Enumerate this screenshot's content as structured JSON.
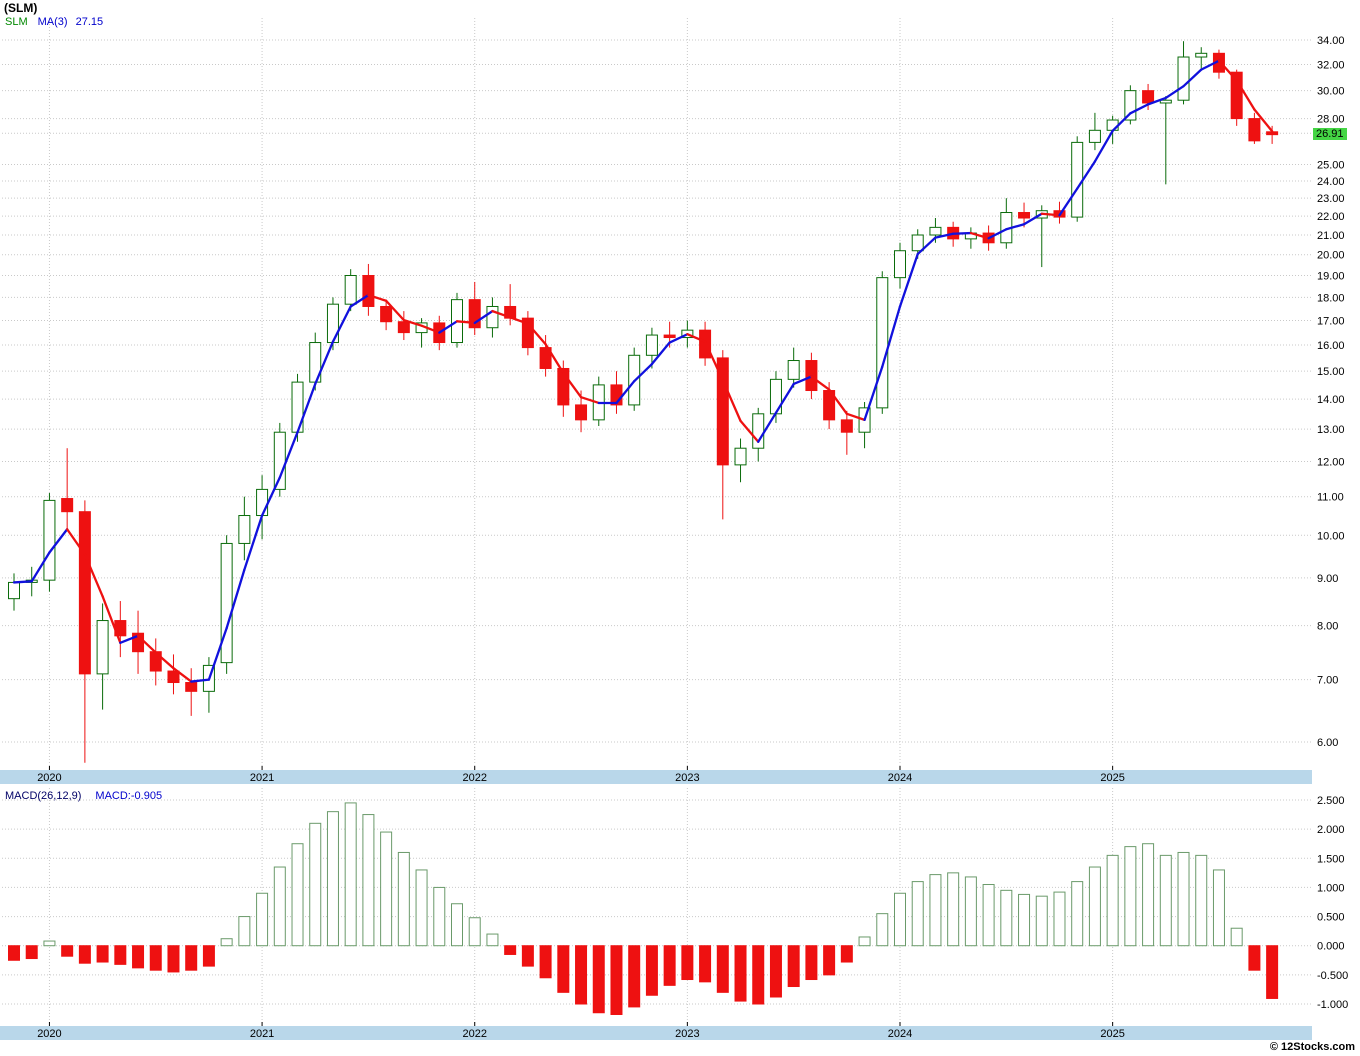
{
  "meta": {
    "title": "(SLM)",
    "copyright": "© 12Stocks.com"
  },
  "chart_data": [
    {
      "type": "candlestick",
      "name": "SLM monthly price with moving average",
      "legend": {
        "symbol": "SLM",
        "ma_label": "MA(3)",
        "ma_value": "27.15"
      },
      "current_price": 26.91,
      "current_price_label": "26.91",
      "scale": "log",
      "ylim": [
        5.6,
        36
      ],
      "y_ticks": [
        34,
        32,
        30,
        28,
        27,
        25,
        24,
        23,
        22,
        21,
        20,
        19,
        18,
        17,
        16,
        15,
        14,
        13,
        12,
        11,
        10,
        9,
        8,
        7,
        6
      ],
      "start_month": "2019-11",
      "years": [
        {
          "label": "2020",
          "index": 2
        },
        {
          "label": "2021",
          "index": 14
        },
        {
          "label": "2022",
          "index": 26
        },
        {
          "label": "2023",
          "index": 38
        },
        {
          "label": "2024",
          "index": 50
        },
        {
          "label": "2025",
          "index": 62
        }
      ],
      "ma_period": 3,
      "ohlc": [
        [
          8.55,
          9.1,
          8.3,
          8.9
        ],
        [
          8.9,
          9.25,
          8.6,
          8.95
        ],
        [
          8.95,
          11.1,
          8.7,
          10.9
        ],
        [
          10.95,
          12.4,
          10.1,
          10.6
        ],
        [
          10.6,
          10.9,
          5.7,
          7.1
        ],
        [
          7.1,
          8.45,
          6.5,
          8.1
        ],
        [
          8.1,
          8.5,
          7.4,
          7.8
        ],
        [
          7.85,
          8.3,
          7.1,
          7.5
        ],
        [
          7.5,
          7.75,
          6.9,
          7.15
        ],
        [
          7.15,
          7.45,
          6.75,
          6.95
        ],
        [
          6.95,
          7.2,
          6.4,
          6.8
        ],
        [
          6.8,
          7.4,
          6.45,
          7.25
        ],
        [
          7.3,
          10.0,
          7.1,
          9.8
        ],
        [
          9.8,
          11.0,
          9.4,
          10.5
        ],
        [
          10.5,
          11.6,
          9.9,
          11.2
        ],
        [
          11.2,
          13.2,
          11.0,
          12.9
        ],
        [
          12.9,
          14.9,
          12.6,
          14.6
        ],
        [
          14.6,
          16.5,
          14.3,
          16.1
        ],
        [
          16.1,
          18.0,
          15.8,
          17.7
        ],
        [
          17.7,
          19.3,
          17.4,
          19.0
        ],
        [
          19.0,
          19.55,
          17.2,
          17.6
        ],
        [
          17.6,
          17.9,
          16.6,
          16.95
        ],
        [
          16.95,
          17.4,
          16.2,
          16.5
        ],
        [
          16.5,
          17.1,
          15.9,
          16.9
        ],
        [
          16.9,
          17.2,
          15.8,
          16.1
        ],
        [
          16.1,
          18.2,
          15.9,
          17.9
        ],
        [
          17.9,
          18.7,
          16.4,
          16.7
        ],
        [
          16.7,
          18.0,
          16.3,
          17.6
        ],
        [
          17.6,
          18.6,
          16.8,
          17.1
        ],
        [
          17.1,
          17.4,
          15.6,
          15.9
        ],
        [
          15.9,
          16.4,
          14.8,
          15.1
        ],
        [
          15.1,
          15.4,
          13.4,
          13.8
        ],
        [
          13.8,
          14.3,
          12.9,
          13.3
        ],
        [
          13.3,
          14.8,
          13.1,
          14.5
        ],
        [
          14.5,
          15.0,
          13.5,
          13.8
        ],
        [
          13.8,
          15.9,
          13.6,
          15.6
        ],
        [
          15.6,
          16.7,
          15.1,
          16.4
        ],
        [
          16.4,
          16.95,
          15.9,
          16.3
        ],
        [
          16.3,
          17.0,
          15.9,
          16.6
        ],
        [
          16.6,
          16.95,
          15.2,
          15.5
        ],
        [
          15.5,
          15.8,
          10.4,
          11.9
        ],
        [
          11.9,
          12.7,
          11.4,
          12.4
        ],
        [
          12.4,
          13.7,
          12.0,
          13.5
        ],
        [
          13.5,
          15.0,
          13.2,
          14.7
        ],
        [
          14.7,
          15.9,
          14.4,
          15.4
        ],
        [
          15.4,
          15.7,
          14.0,
          14.3
        ],
        [
          14.3,
          14.6,
          13.0,
          13.3
        ],
        [
          13.3,
          13.6,
          12.2,
          12.9
        ],
        [
          12.9,
          13.9,
          12.4,
          13.7
        ],
        [
          13.7,
          19.2,
          13.5,
          18.9
        ],
        [
          18.9,
          20.6,
          18.4,
          20.2
        ],
        [
          20.2,
          21.3,
          19.8,
          21.0
        ],
        [
          21.0,
          21.9,
          20.6,
          21.4
        ],
        [
          21.4,
          21.7,
          20.4,
          20.8
        ],
        [
          20.8,
          21.4,
          20.3,
          21.1
        ],
        [
          21.1,
          21.5,
          20.2,
          20.6
        ],
        [
          20.6,
          23.0,
          20.3,
          22.2
        ],
        [
          22.2,
          22.75,
          21.4,
          21.9
        ],
        [
          21.9,
          22.6,
          19.4,
          22.3
        ],
        [
          22.3,
          22.8,
          21.6,
          21.95
        ],
        [
          21.95,
          26.8,
          21.7,
          26.4
        ],
        [
          26.4,
          28.4,
          25.9,
          27.2
        ],
        [
          27.2,
          28.2,
          26.3,
          27.9
        ],
        [
          27.9,
          30.4,
          27.6,
          30.0
        ],
        [
          30.0,
          30.5,
          28.6,
          29.1
        ],
        [
          29.1,
          29.6,
          23.8,
          29.3
        ],
        [
          29.3,
          33.9,
          29.0,
          32.6
        ],
        [
          32.6,
          33.4,
          31.7,
          32.9
        ],
        [
          32.9,
          33.2,
          30.9,
          31.4
        ],
        [
          31.4,
          31.6,
          27.5,
          28.0
        ],
        [
          28.0,
          28.4,
          26.3,
          26.5
        ],
        [
          27.1,
          27.5,
          26.3,
          26.91
        ]
      ],
      "colors": {
        "up": "#0a6b0a",
        "down": "#ee1111",
        "ma_up": "#1111dd",
        "ma_down": "#ee1111",
        "grid": "#c9c9c9",
        "band_bg": "#b9d7ea",
        "tag_bg": "#44d544",
        "tag_border": "#007700"
      }
    },
    {
      "type": "bar",
      "name": "MACD histogram",
      "legend": {
        "label": "MACD(26,12,9)",
        "value_label": "MACD:-0.905"
      },
      "params": [
        26,
        12,
        9
      ],
      "last_value": -0.905,
      "y_ticks": [
        2.5,
        2.0,
        1.5,
        1.0,
        0.5,
        0.0,
        -0.5,
        -1.0
      ],
      "values": [
        -0.25,
        -0.22,
        0.08,
        -0.18,
        -0.3,
        -0.28,
        -0.32,
        -0.38,
        -0.42,
        -0.45,
        -0.42,
        -0.35,
        0.12,
        0.5,
        0.9,
        1.35,
        1.75,
        2.1,
        2.3,
        2.45,
        2.25,
        1.95,
        1.6,
        1.3,
        1.0,
        0.72,
        0.48,
        0.2,
        -0.15,
        -0.35,
        -0.55,
        -0.8,
        -1.0,
        -1.15,
        -1.18,
        -1.05,
        -0.85,
        -0.68,
        -0.58,
        -0.62,
        -0.8,
        -0.95,
        -1.0,
        -0.88,
        -0.7,
        -0.58,
        -0.5,
        -0.28,
        0.15,
        0.55,
        0.9,
        1.1,
        1.22,
        1.25,
        1.18,
        1.05,
        0.95,
        0.88,
        0.85,
        0.92,
        1.1,
        1.35,
        1.55,
        1.7,
        1.75,
        1.55,
        1.6,
        1.55,
        1.3,
        0.3,
        -0.42,
        -0.905
      ],
      "colors": {
        "pos_stroke": "#6a9a6a",
        "pos_fill": "#ffffff",
        "neg": "#ee1111"
      }
    }
  ]
}
